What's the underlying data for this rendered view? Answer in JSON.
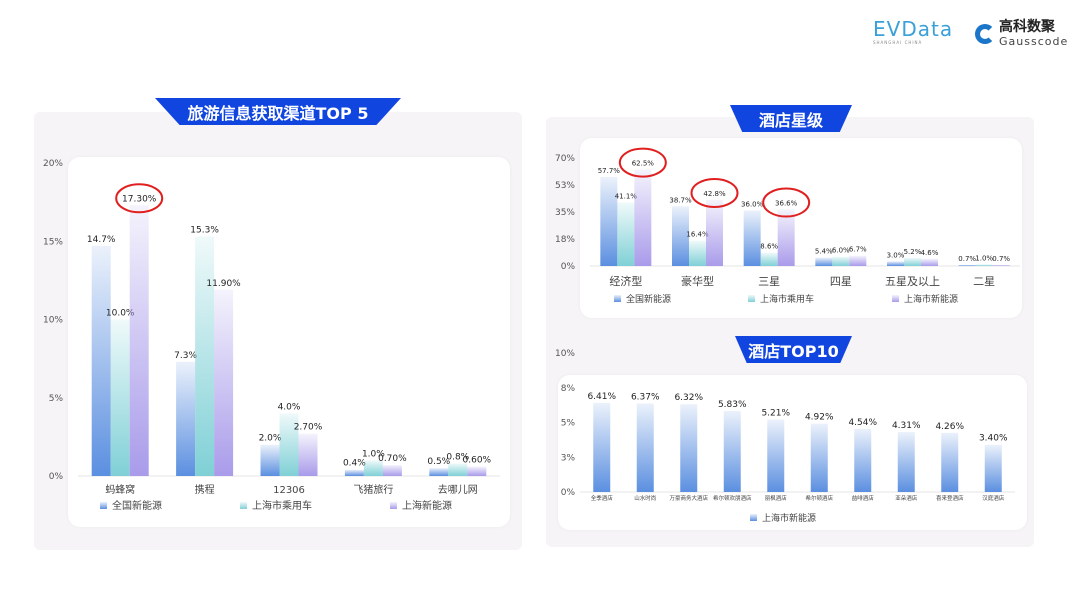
{
  "logos": {
    "evdata": "EVData",
    "evdata_sub": "SHANGHAI CHINA",
    "gauss_cn": "高科数聚",
    "gauss_en": "Gausscode"
  },
  "colors": {
    "series1": "#5b8fe0",
    "series2": "#7fd0d6",
    "series3": "#a99bea",
    "highlight": "#e02020",
    "banner": "#1145e0"
  },
  "chart_data": [
    {
      "type": "bar",
      "title": "旅游信息获取渠道TOP 5",
      "categories": [
        "蚂蜂窝",
        "携程",
        "12306",
        "飞猪旅行",
        "去哪儿网"
      ],
      "yticks": [
        "0%",
        "5%",
        "10%",
        "15%",
        "20%"
      ],
      "ylim": [
        0,
        20
      ],
      "legend_position": "bottom",
      "series": [
        {
          "name": "全国新能源",
          "values": [
            14.7,
            7.3,
            2.0,
            0.4,
            0.5
          ],
          "labels": [
            "14.7%",
            "7.3%",
            "2.0%",
            "0.4%",
            "0.5%"
          ]
        },
        {
          "name": "上海市乘用车",
          "values": [
            10.0,
            15.3,
            4.0,
            1.0,
            0.8
          ],
          "labels": [
            "10.0%",
            "15.3%",
            "4.0%",
            "1.0%",
            "0.8%"
          ]
        },
        {
          "name": "上海新能源",
          "values": [
            17.3,
            11.9,
            2.7,
            0.7,
            0.6
          ],
          "labels": [
            "17.30%",
            "11.90%",
            "2.70%",
            "0.70%",
            "0.60%"
          ]
        }
      ],
      "highlighted": [
        "17.30%"
      ]
    },
    {
      "type": "bar",
      "title": "酒店星级",
      "categories": [
        "经济型",
        "豪华型",
        "三星",
        "四星",
        "五星及以上",
        "二星"
      ],
      "yticks": [
        "0%",
        "18%",
        "35%",
        "53%",
        "70%"
      ],
      "ylim": [
        0,
        70
      ],
      "legend_position": "bottom",
      "series": [
        {
          "name": "全国新能源",
          "values": [
            57.7,
            38.7,
            36.0,
            5.4,
            3.0,
            0.7
          ],
          "labels": [
            "57.7%",
            "38.7%",
            "36.0%",
            "5.4%",
            "3.0%",
            "0.7%"
          ]
        },
        {
          "name": "上海市乘用车",
          "values": [
            41.1,
            16.4,
            8.6,
            6.0,
            5.2,
            1.0
          ],
          "labels": [
            "41.1%",
            "16.4%",
            "8.6%",
            "6.0%",
            "5.2%",
            "1.0%"
          ]
        },
        {
          "name": "上海市新能源",
          "values": [
            62.5,
            42.8,
            36.6,
            6.7,
            4.6,
            0.7
          ],
          "labels": [
            "62.5%",
            "42.8%",
            "36.6%",
            "6.7%",
            "4.6%",
            "0.7%"
          ]
        }
      ],
      "highlighted": [
        "62.5%",
        "42.8%",
        "36.6%"
      ]
    },
    {
      "type": "bar",
      "title": "酒店TOP10",
      "categories": [
        "全季酒店",
        "山水时尚",
        "万豪商务大酒店",
        "希尔顿欢朋酒店",
        "丽枫酒店",
        "希尔顿酒店",
        "喆啡酒店",
        "亚朵酒店",
        "喜来登酒店",
        "汉庭酒店"
      ],
      "yticks": [
        "0%",
        "3%",
        "5%",
        "8%",
        "10%"
      ],
      "ylim": [
        0,
        10
      ],
      "legend_position": "bottom",
      "series": [
        {
          "name": "上海市新能源",
          "values": [
            6.41,
            6.37,
            6.32,
            5.83,
            5.21,
            4.92,
            4.54,
            4.31,
            4.26,
            3.4
          ],
          "labels": [
            "6.41%",
            "6.37%",
            "6.32%",
            "5.83%",
            "5.21%",
            "4.92%",
            "4.54%",
            "4.31%",
            "4.26%",
            "3.40%"
          ]
        }
      ],
      "highlighted": []
    }
  ]
}
